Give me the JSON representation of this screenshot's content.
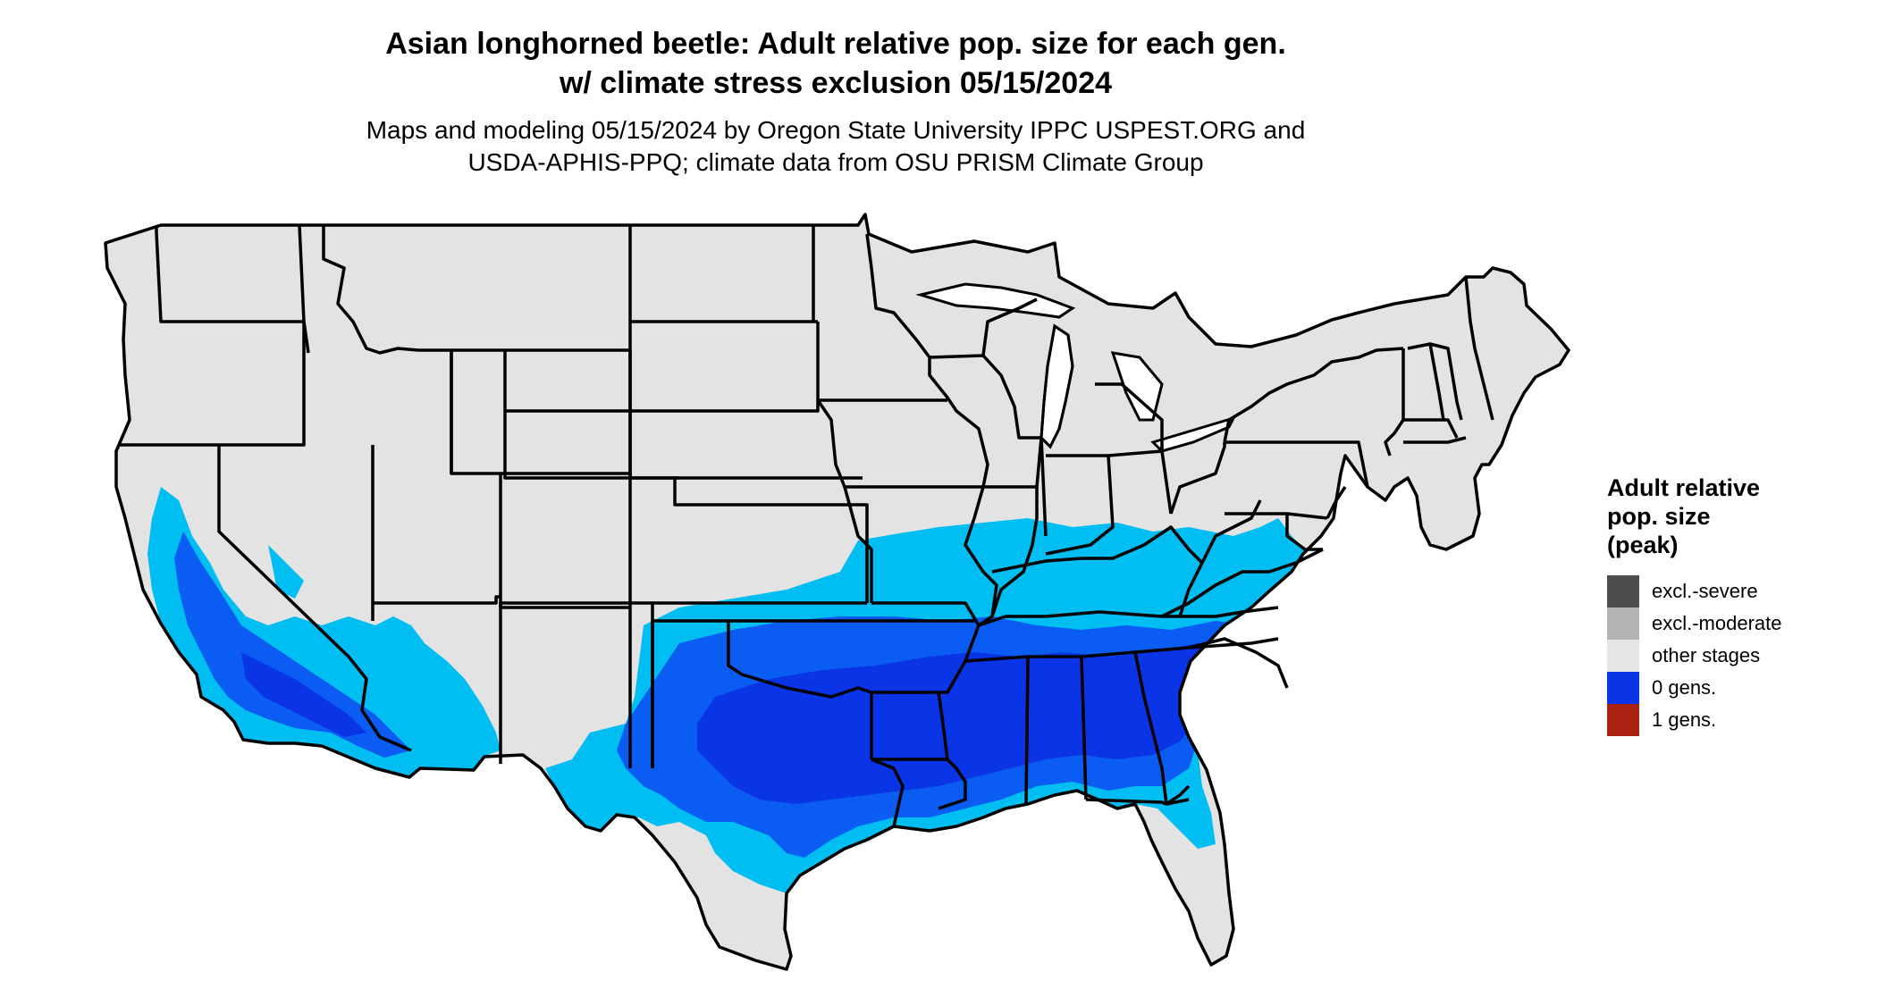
{
  "title": {
    "line1": "Asian longhorned beetle: Adult relative pop. size for each gen.",
    "line2": "w/ climate stress exclusion 05/15/2024"
  },
  "subtitle": {
    "line1": "Maps and modeling 05/15/2024 by Oregon State University IPPC USPEST.ORG and",
    "line2": "USDA-APHIS-PPQ; climate data from OSU PRISM Climate Group"
  },
  "legend": {
    "title_line1": "Adult relative",
    "title_line2": "pop. size",
    "title_line3": "(peak)",
    "items": [
      {
        "label": "excl.-severe",
        "color": "#4d4d4d"
      },
      {
        "label": "excl.-moderate",
        "color": "#b3b3b3"
      },
      {
        "label": "other stages",
        "color": "#e6e6e6"
      },
      {
        "label": "0 gens.",
        "color": "#0a35e6"
      },
      {
        "label": "1 gens.",
        "color": "#aa2211"
      }
    ]
  },
  "map": {
    "land_color": "#e3e3e3",
    "border_color": "#000000",
    "low_population_color": "#00bdf2",
    "mid_population_color": "#0a5cf2",
    "high_population_color": "#0a35e6"
  }
}
